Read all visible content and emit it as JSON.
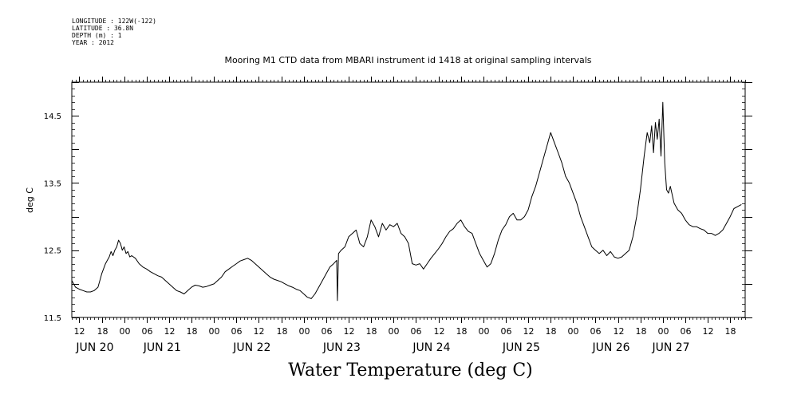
{
  "metadata": {
    "longitude": "LONGITUDE : 122W(-122)",
    "latitude": "LATITUDE : 36.8N",
    "depth": "DEPTH (m) : 1",
    "year": "YEAR : 2012"
  },
  "chart_data": {
    "type": "line",
    "title": "Mooring M1 CTD data from MBARI instrument id 1418 at original sampling intervals",
    "xlabel": "Water Temperature (deg C)",
    "ylabel": "deg C",
    "ylim": [
      11.5,
      15.0
    ],
    "yticks": [
      11.5,
      12.5,
      13.5,
      14.5
    ],
    "ytick_labels": [
      "11.5",
      "12.5",
      "13.5",
      "14.5"
    ],
    "xlim_hours": [
      -14,
      166
    ],
    "hour_ticks": [
      {
        "h": -12,
        "label": "12"
      },
      {
        "h": -6,
        "label": "18"
      },
      {
        "h": 0,
        "label": "00"
      },
      {
        "h": 6,
        "label": "06"
      },
      {
        "h": 12,
        "label": "12"
      },
      {
        "h": 18,
        "label": "18"
      },
      {
        "h": 24,
        "label": "00"
      },
      {
        "h": 30,
        "label": "06"
      },
      {
        "h": 36,
        "label": "12"
      },
      {
        "h": 42,
        "label": "18"
      },
      {
        "h": 48,
        "label": "00"
      },
      {
        "h": 54,
        "label": "06"
      },
      {
        "h": 60,
        "label": "12"
      },
      {
        "h": 66,
        "label": "18"
      },
      {
        "h": 72,
        "label": "00"
      },
      {
        "h": 78,
        "label": "06"
      },
      {
        "h": 84,
        "label": "12"
      },
      {
        "h": 90,
        "label": "18"
      },
      {
        "h": 96,
        "label": "00"
      },
      {
        "h": 102,
        "label": "06"
      },
      {
        "h": 108,
        "label": "12"
      },
      {
        "h": 114,
        "label": "18"
      },
      {
        "h": 120,
        "label": "00"
      },
      {
        "h": 126,
        "label": "06"
      },
      {
        "h": 132,
        "label": "12"
      },
      {
        "h": 138,
        "label": "18"
      },
      {
        "h": 144,
        "label": "00"
      },
      {
        "h": 150,
        "label": "06"
      },
      {
        "h": 156,
        "label": "12"
      },
      {
        "h": 162,
        "label": "18"
      }
    ],
    "date_labels": [
      {
        "h": -12,
        "label": "JUN 20"
      },
      {
        "h": 6,
        "label": "JUN 21"
      },
      {
        "h": 30,
        "label": "JUN 22"
      },
      {
        "h": 54,
        "label": "JUN 23"
      },
      {
        "h": 78,
        "label": "JUN 24"
      },
      {
        "h": 102,
        "label": "JUN 25"
      },
      {
        "h": 126,
        "label": "JUN 26"
      },
      {
        "h": 142,
        "label": "JUN 27"
      }
    ],
    "series": [
      {
        "points": [
          [
            -14,
            12.05
          ],
          [
            -13.5,
            12.0
          ],
          [
            -13,
            11.95
          ],
          [
            -12,
            11.92
          ],
          [
            -11,
            11.9
          ],
          [
            -10,
            11.88
          ],
          [
            -9,
            11.88
          ],
          [
            -8,
            11.9
          ],
          [
            -7,
            11.95
          ],
          [
            -6.5,
            12.05
          ],
          [
            -6,
            12.15
          ],
          [
            -5,
            12.3
          ],
          [
            -4.5,
            12.35
          ],
          [
            -4,
            12.4
          ],
          [
            -3.5,
            12.48
          ],
          [
            -3,
            12.42
          ],
          [
            -2.5,
            12.5
          ],
          [
            -2,
            12.55
          ],
          [
            -1.5,
            12.65
          ],
          [
            -1,
            12.6
          ],
          [
            -0.5,
            12.5
          ],
          [
            0,
            12.55
          ],
          [
            0.5,
            12.45
          ],
          [
            1,
            12.48
          ],
          [
            1.5,
            12.4
          ],
          [
            2,
            12.42
          ],
          [
            3,
            12.38
          ],
          [
            4,
            12.3
          ],
          [
            5,
            12.25
          ],
          [
            6,
            12.22
          ],
          [
            7,
            12.18
          ],
          [
            8,
            12.15
          ],
          [
            9,
            12.12
          ],
          [
            10,
            12.1
          ],
          [
            11,
            12.05
          ],
          [
            12,
            12.0
          ],
          [
            13,
            11.95
          ],
          [
            14,
            11.9
          ],
          [
            15,
            11.88
          ],
          [
            16,
            11.85
          ],
          [
            17,
            11.9
          ],
          [
            18,
            11.95
          ],
          [
            19,
            11.98
          ],
          [
            20,
            11.97
          ],
          [
            21,
            11.95
          ],
          [
            22,
            11.96
          ],
          [
            23,
            11.98
          ],
          [
            24,
            12.0
          ],
          [
            25,
            12.05
          ],
          [
            26,
            12.1
          ],
          [
            27,
            12.18
          ],
          [
            28,
            12.22
          ],
          [
            29,
            12.26
          ],
          [
            30,
            12.3
          ],
          [
            31,
            12.34
          ],
          [
            32,
            12.36
          ],
          [
            33,
            12.38
          ],
          [
            34,
            12.35
          ],
          [
            35,
            12.3
          ],
          [
            36,
            12.25
          ],
          [
            37,
            12.2
          ],
          [
            38,
            12.15
          ],
          [
            39,
            12.1
          ],
          [
            40,
            12.07
          ],
          [
            41,
            12.05
          ],
          [
            42,
            12.03
          ],
          [
            43,
            12.0
          ],
          [
            44,
            11.97
          ],
          [
            45,
            11.95
          ],
          [
            46,
            11.92
          ],
          [
            47,
            11.9
          ],
          [
            48,
            11.85
          ],
          [
            49,
            11.8
          ],
          [
            50,
            11.78
          ],
          [
            51,
            11.85
          ],
          [
            52,
            11.95
          ],
          [
            53,
            12.05
          ],
          [
            54,
            12.15
          ],
          [
            55,
            12.25
          ],
          [
            56,
            12.3
          ],
          [
            56.8,
            12.35
          ],
          [
            57,
            11.75
          ],
          [
            57.3,
            12.45
          ],
          [
            58,
            12.5
          ],
          [
            59,
            12.55
          ],
          [
            60,
            12.7
          ],
          [
            61,
            12.75
          ],
          [
            62,
            12.8
          ],
          [
            63,
            12.6
          ],
          [
            64,
            12.55
          ],
          [
            65,
            12.7
          ],
          [
            66,
            12.95
          ],
          [
            67,
            12.85
          ],
          [
            68,
            12.7
          ],
          [
            69,
            12.9
          ],
          [
            70,
            12.8
          ],
          [
            71,
            12.88
          ],
          [
            72,
            12.85
          ],
          [
            73,
            12.9
          ],
          [
            74,
            12.75
          ],
          [
            75,
            12.7
          ],
          [
            76,
            12.6
          ],
          [
            77,
            12.3
          ],
          [
            78,
            12.28
          ],
          [
            79,
            12.3
          ],
          [
            80,
            12.22
          ],
          [
            81,
            12.3
          ],
          [
            82,
            12.38
          ],
          [
            83,
            12.45
          ],
          [
            84,
            12.52
          ],
          [
            85,
            12.6
          ],
          [
            86,
            12.7
          ],
          [
            87,
            12.78
          ],
          [
            88,
            12.82
          ],
          [
            89,
            12.9
          ],
          [
            90,
            12.95
          ],
          [
            91,
            12.85
          ],
          [
            92,
            12.78
          ],
          [
            93,
            12.75
          ],
          [
            94,
            12.6
          ],
          [
            95,
            12.45
          ],
          [
            96,
            12.35
          ],
          [
            97,
            12.25
          ],
          [
            98,
            12.3
          ],
          [
            99,
            12.45
          ],
          [
            100,
            12.65
          ],
          [
            101,
            12.8
          ],
          [
            102,
            12.88
          ],
          [
            103,
            13.0
          ],
          [
            104,
            13.05
          ],
          [
            105,
            12.95
          ],
          [
            106,
            12.95
          ],
          [
            107,
            13.0
          ],
          [
            108,
            13.1
          ],
          [
            109,
            13.3
          ],
          [
            110,
            13.45
          ],
          [
            111,
            13.65
          ],
          [
            112,
            13.85
          ],
          [
            113,
            14.05
          ],
          [
            114,
            14.25
          ],
          [
            115,
            14.1
          ],
          [
            116,
            13.95
          ],
          [
            117,
            13.8
          ],
          [
            118,
            13.6
          ],
          [
            119,
            13.5
          ],
          [
            120,
            13.35
          ],
          [
            121,
            13.2
          ],
          [
            122,
            13.0
          ],
          [
            123,
            12.85
          ],
          [
            124,
            12.7
          ],
          [
            125,
            12.55
          ],
          [
            126,
            12.5
          ],
          [
            127,
            12.45
          ],
          [
            128,
            12.5
          ],
          [
            129,
            12.42
          ],
          [
            130,
            12.48
          ],
          [
            131,
            12.4
          ],
          [
            132,
            12.38
          ],
          [
            133,
            12.4
          ],
          [
            134,
            12.45
          ],
          [
            135,
            12.5
          ],
          [
            136,
            12.7
          ],
          [
            137,
            13.0
          ],
          [
            138,
            13.4
          ],
          [
            139,
            13.9
          ],
          [
            139.8,
            14.25
          ],
          [
            140.5,
            14.1
          ],
          [
            141,
            14.35
          ],
          [
            141.5,
            13.95
          ],
          [
            142,
            14.4
          ],
          [
            142.5,
            14.15
          ],
          [
            143,
            14.45
          ],
          [
            143.5,
            13.9
          ],
          [
            144,
            14.7
          ],
          [
            144.5,
            13.8
          ],
          [
            145,
            13.4
          ],
          [
            145.5,
            13.35
          ],
          [
            146,
            13.45
          ],
          [
            147,
            13.2
          ],
          [
            148,
            13.1
          ],
          [
            149,
            13.05
          ],
          [
            150,
            12.95
          ],
          [
            151,
            12.88
          ],
          [
            152,
            12.85
          ],
          [
            153,
            12.85
          ],
          [
            154,
            12.82
          ],
          [
            155,
            12.8
          ],
          [
            156,
            12.75
          ],
          [
            157,
            12.75
          ],
          [
            158,
            12.72
          ],
          [
            159,
            12.75
          ],
          [
            160,
            12.8
          ],
          [
            161,
            12.9
          ],
          [
            162,
            13.0
          ],
          [
            163,
            13.12
          ],
          [
            164,
            13.15
          ],
          [
            165,
            13.18
          ]
        ]
      }
    ]
  }
}
